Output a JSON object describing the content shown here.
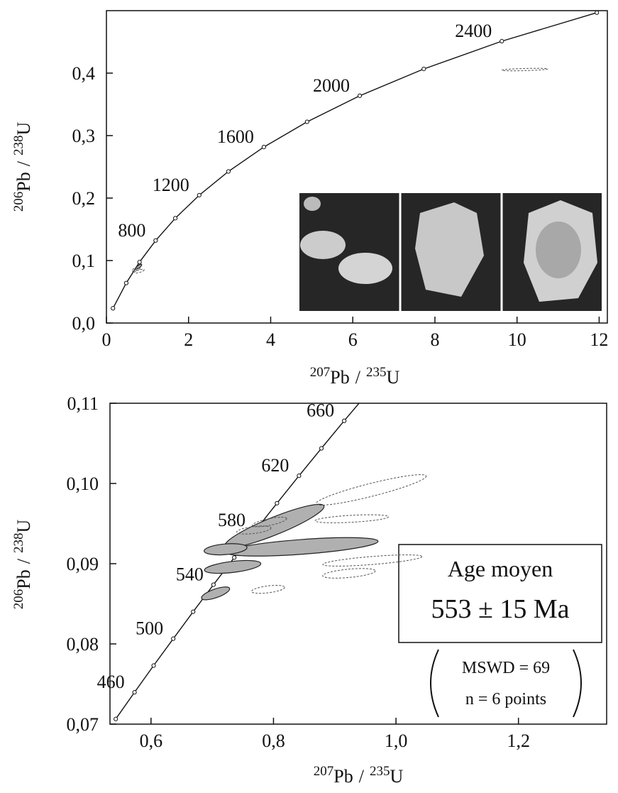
{
  "chart_data": [
    {
      "type": "line",
      "xlabel": {
        "numerator": {
          "mass": "207",
          "element": "Pb"
        },
        "separator": "/",
        "denominator": {
          "mass": "235",
          "element": "U"
        }
      },
      "ylabel": {
        "numerator": {
          "mass": "206",
          "element": "Pb"
        },
        "separator": "/",
        "denominator": {
          "mass": "238",
          "element": "U"
        }
      },
      "xlim": [
        0,
        12.2
      ],
      "ylim": [
        0,
        0.5
      ],
      "xticks": [
        0,
        2,
        4,
        6,
        8,
        10,
        12
      ],
      "yticks": [
        {
          "value": 0,
          "label": "0,0"
        },
        {
          "value": 0.1,
          "label": "0,1"
        },
        {
          "value": 0.2,
          "label": "0,2"
        },
        {
          "value": 0.3,
          "label": "0,3"
        },
        {
          "value": 0.4,
          "label": "0,4"
        }
      ],
      "concordia": {
        "x": [
          0.1592,
          0.4828,
          0.8057,
          1.1987,
          1.6775,
          2.2603,
          2.97,
          3.8344,
          4.887,
          6.1688,
          7.7292,
          9.6299,
          11.9441
        ],
        "y": [
          0.02354,
          0.064,
          0.09754,
          0.1321,
          0.1678,
          0.2046,
          0.2426,
          0.2817,
          0.3221,
          0.3638,
          0.4067,
          0.4511,
          0.4968
        ],
        "point_labels": [
          null,
          null,
          null,
          800,
          null,
          1200,
          null,
          1600,
          null,
          2000,
          null,
          2400,
          null
        ]
      },
      "ellipses": [
        {
          "x": 10.19,
          "y": 0.4057,
          "sx": 0.56,
          "sy": 0.002,
          "rho": 0.5,
          "style": "dashed"
        },
        {
          "x": 0.78,
          "y": 0.09,
          "sx": 0.08,
          "sy": 0.004,
          "rho": 0.8,
          "style": "filled"
        },
        {
          "x": 0.72,
          "y": 0.086,
          "sx": 0.1,
          "sy": 0.003,
          "rho": 0.6,
          "style": "dashed"
        },
        {
          "x": 0.8,
          "y": 0.083,
          "sx": 0.12,
          "sy": 0.003,
          "rho": 0.7,
          "style": "dashed"
        }
      ]
    },
    {
      "type": "line",
      "xlabel": {
        "numerator": {
          "mass": "207",
          "element": "Pb"
        },
        "separator": "/",
        "denominator": {
          "mass": "235",
          "element": "U"
        }
      },
      "ylabel": {
        "numerator": {
          "mass": "206",
          "element": "Pb"
        },
        "separator": "/",
        "denominator": {
          "mass": "238",
          "element": "U"
        }
      },
      "xlim": [
        0.533,
        1.344
      ],
      "ylim": [
        0.07,
        0.11
      ],
      "xticks": [
        {
          "value": 0.6,
          "label": "0,6"
        },
        {
          "value": 0.8,
          "label": "0,8"
        },
        {
          "value": 1.0,
          "label": "1,0"
        },
        {
          "value": 1.2,
          "label": "1,2"
        }
      ],
      "yticks": [
        {
          "value": 0.07,
          "label": "0,07"
        },
        {
          "value": 0.08,
          "label": "0,08"
        },
        {
          "value": 0.09,
          "label": "0,09"
        },
        {
          "value": 0.1,
          "label": "0,10"
        },
        {
          "value": 0.11,
          "label": "0,11"
        }
      ],
      "concordia": {
        "x": [
          0.5424,
          0.5731,
          0.6043,
          0.6363,
          0.6688,
          0.702,
          0.7359,
          0.7705,
          0.8057,
          0.8416,
          0.8783,
          0.9155,
          0.9536
        ],
        "y": [
          0.07064,
          0.07397,
          0.0773,
          0.08065,
          0.08401,
          0.08738,
          0.09076,
          0.09414,
          0.09754,
          0.10096,
          0.10438,
          0.10781,
          0.11125
        ],
        "point_labels": [
          null,
          460,
          null,
          500,
          null,
          540,
          null,
          580,
          null,
          620,
          null,
          660,
          null
        ]
      },
      "ellipses": [
        {
          "x": 0.8016,
          "y": 0.0947,
          "sx": 0.081,
          "sy": 0.0027,
          "rho": 0.9,
          "style": "filled"
        },
        {
          "x": 0.8468,
          "y": 0.0921,
          "sx": 0.124,
          "sy": 0.00115,
          "rho": 0.6,
          "style": "filled"
        },
        {
          "x": 0.7217,
          "y": 0.0918,
          "sx": 0.035,
          "sy": 0.0007,
          "rho": 0.3,
          "style": "filled"
        },
        {
          "x": 0.7333,
          "y": 0.0896,
          "sx": 0.046,
          "sy": 0.0008,
          "rho": 0.5,
          "style": "filled"
        },
        {
          "x": 0.7054,
          "y": 0.0863,
          "sx": 0.023,
          "sy": 0.0008,
          "rho": 0.7,
          "style": "filled"
        },
        {
          "x": 0.9594,
          "y": 0.0992,
          "sx": 0.09,
          "sy": 0.0019,
          "rho": 0.9,
          "style": "dashed"
        },
        {
          "x": 0.9279,
          "y": 0.0956,
          "sx": 0.06,
          "sy": 0.0005,
          "rho": 0.5,
          "style": "dashed"
        },
        {
          "x": 0.7935,
          "y": 0.0952,
          "sx": 0.028,
          "sy": 0.0006,
          "rho": 0.7,
          "style": "dashed"
        },
        {
          "x": 0.768,
          "y": 0.0942,
          "sx": 0.028,
          "sy": 0.0005,
          "rho": 0.5,
          "style": "dashed"
        },
        {
          "x": 0.9615,
          "y": 0.0904,
          "sx": 0.081,
          "sy": 0.0007,
          "rho": 0.7,
          "style": "dashed"
        },
        {
          "x": 0.9233,
          "y": 0.0888,
          "sx": 0.043,
          "sy": 0.0006,
          "rho": 0.5,
          "style": "dashed"
        },
        {
          "x": 0.7912,
          "y": 0.0868,
          "sx": 0.027,
          "sy": 0.0005,
          "rho": 0.5,
          "style": "dashed"
        }
      ],
      "annotation": {
        "title": "Age moyen",
        "result": "553 ± 15 Ma",
        "mswd": "MSWD = 69",
        "n": "n = 6 points"
      }
    }
  ]
}
